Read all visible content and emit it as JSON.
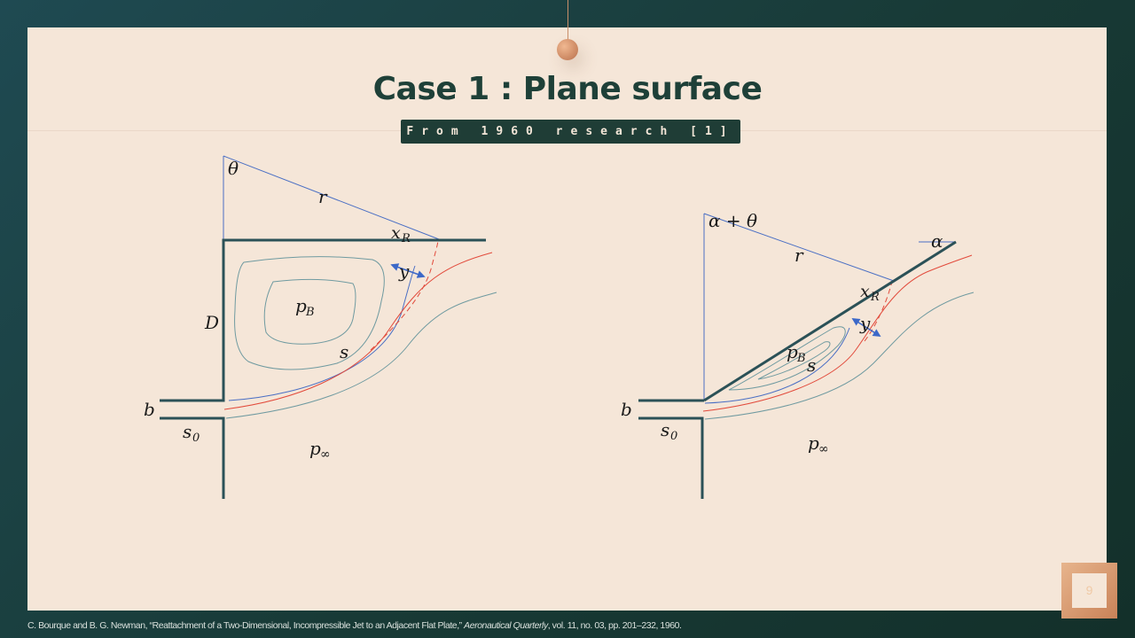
{
  "slide": {
    "title": "Case 1 : Plane surface",
    "subtitle": "From 1960 research [1]",
    "page_number": "9",
    "citation_before": "C. Bourque and B. G. Newman, “Reattachment of a Two-Dimensional, Incompressible Jet to an Adjacent Flat Plate,” ",
    "citation_journal": "Aeronautical Quarterly",
    "citation_after": ", vol. 11, no. 03, pp. 201–232, 1960."
  },
  "left_diagram": {
    "theta": "θ",
    "r": "r",
    "x": "x",
    "x_sub": "R",
    "y": "y",
    "D": "D",
    "p": "p",
    "p_sub": "B",
    "s": "s",
    "b": "b",
    "s0": "s",
    "s0_sub": "0",
    "pinf": "p",
    "pinf_sub": "∞"
  },
  "right_diagram": {
    "angle": "α + θ",
    "alpha": "α",
    "r": "r",
    "x": "x",
    "x_sub": "R",
    "y": "y",
    "p": "p",
    "p_sub": "B",
    "s": "s",
    "b": "b",
    "s0": "s",
    "s0_sub": "0",
    "pinf": "p",
    "pinf_sub": "∞"
  },
  "colors": {
    "wall": "#2b5157",
    "construction": "#4a6fc4",
    "jet_edge": "#e24a3b",
    "streamline": "#6f9aa0",
    "arrow": "#3c68c8"
  }
}
